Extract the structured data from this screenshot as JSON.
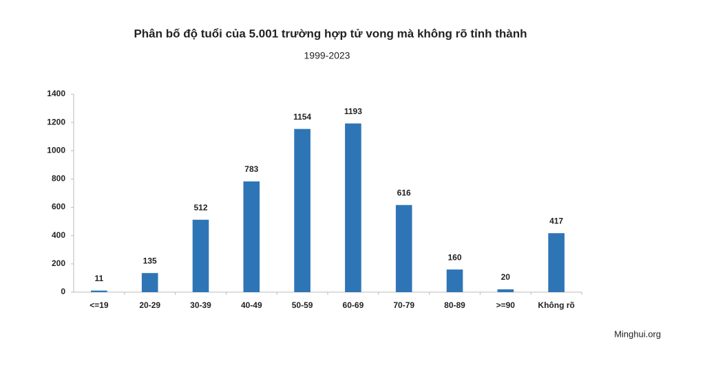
{
  "chart_data": {
    "type": "bar",
    "title": "Phân bố độ tuổi của 5.001 trường hợp tử vong mà không rõ tỉnh thành",
    "subtitle": "1999-2023",
    "source": "Minghui.org",
    "categories": [
      "<=19",
      "20-29",
      "30-39",
      "40-49",
      "50-59",
      "60-69",
      "70-79",
      "80-89",
      ">=90",
      "Không rõ"
    ],
    "values": [
      11,
      135,
      512,
      783,
      1154,
      1193,
      616,
      160,
      20,
      417
    ],
    "color": "#2e75b6",
    "ylim": [
      0,
      1400
    ],
    "yticks": [
      0,
      200,
      400,
      600,
      800,
      1000,
      1200,
      1400
    ],
    "grid": false
  }
}
